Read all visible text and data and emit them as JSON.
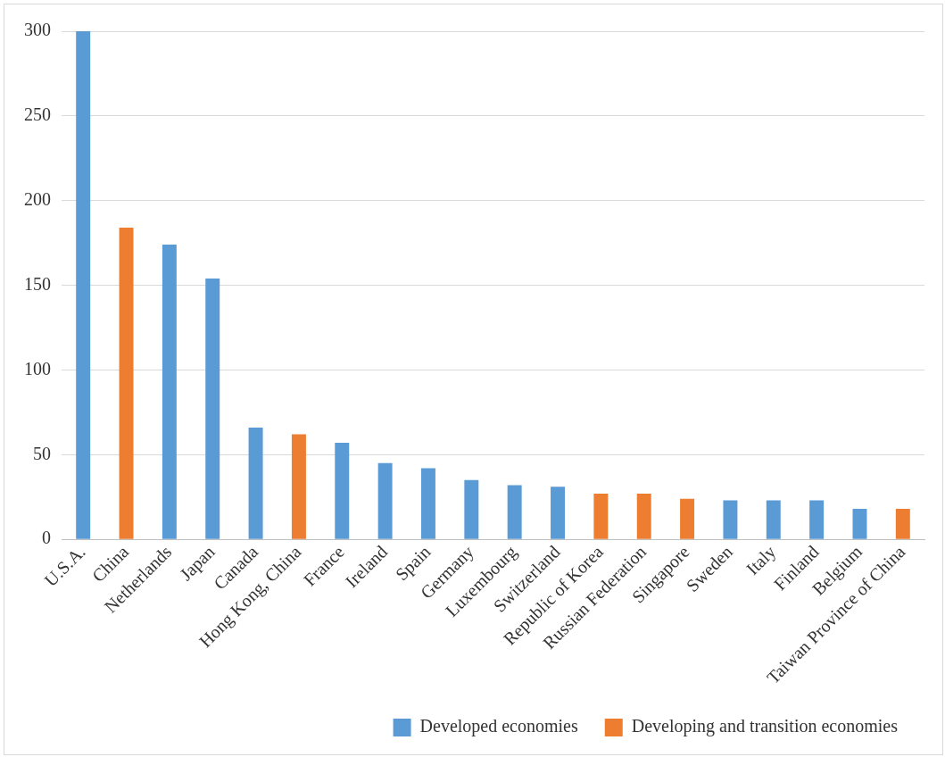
{
  "chart_data": {
    "type": "bar",
    "categories": [
      "U.S.A.",
      "China",
      "Netherlands",
      "Japan",
      "Canada",
      "Hong Kong, China",
      "France",
      "Ireland",
      "Spain",
      "Germany",
      "Luxembourg",
      "Switzerland",
      "Republic of Korea",
      "Russian Federation",
      "Singapore",
      "Sweden",
      "Italy",
      "Finland",
      "Belgium",
      "Taiwan Province of China"
    ],
    "series": [
      {
        "name": "Developed economies",
        "color": "#5b9bd5",
        "values": [
          300,
          null,
          174,
          154,
          66,
          null,
          57,
          45,
          42,
          35,
          32,
          31,
          null,
          null,
          null,
          23,
          23,
          23,
          18,
          null
        ]
      },
      {
        "name": "Developing and transition economies",
        "color": "#ed7d31",
        "values": [
          null,
          184,
          null,
          null,
          null,
          62,
          null,
          null,
          null,
          null,
          null,
          null,
          27,
          27,
          24,
          null,
          null,
          null,
          null,
          18
        ]
      }
    ],
    "ylim": [
      0,
      300
    ],
    "yticks": [
      0,
      50,
      100,
      150,
      200,
      250,
      300
    ],
    "grid": "y",
    "legend": "bottom"
  }
}
